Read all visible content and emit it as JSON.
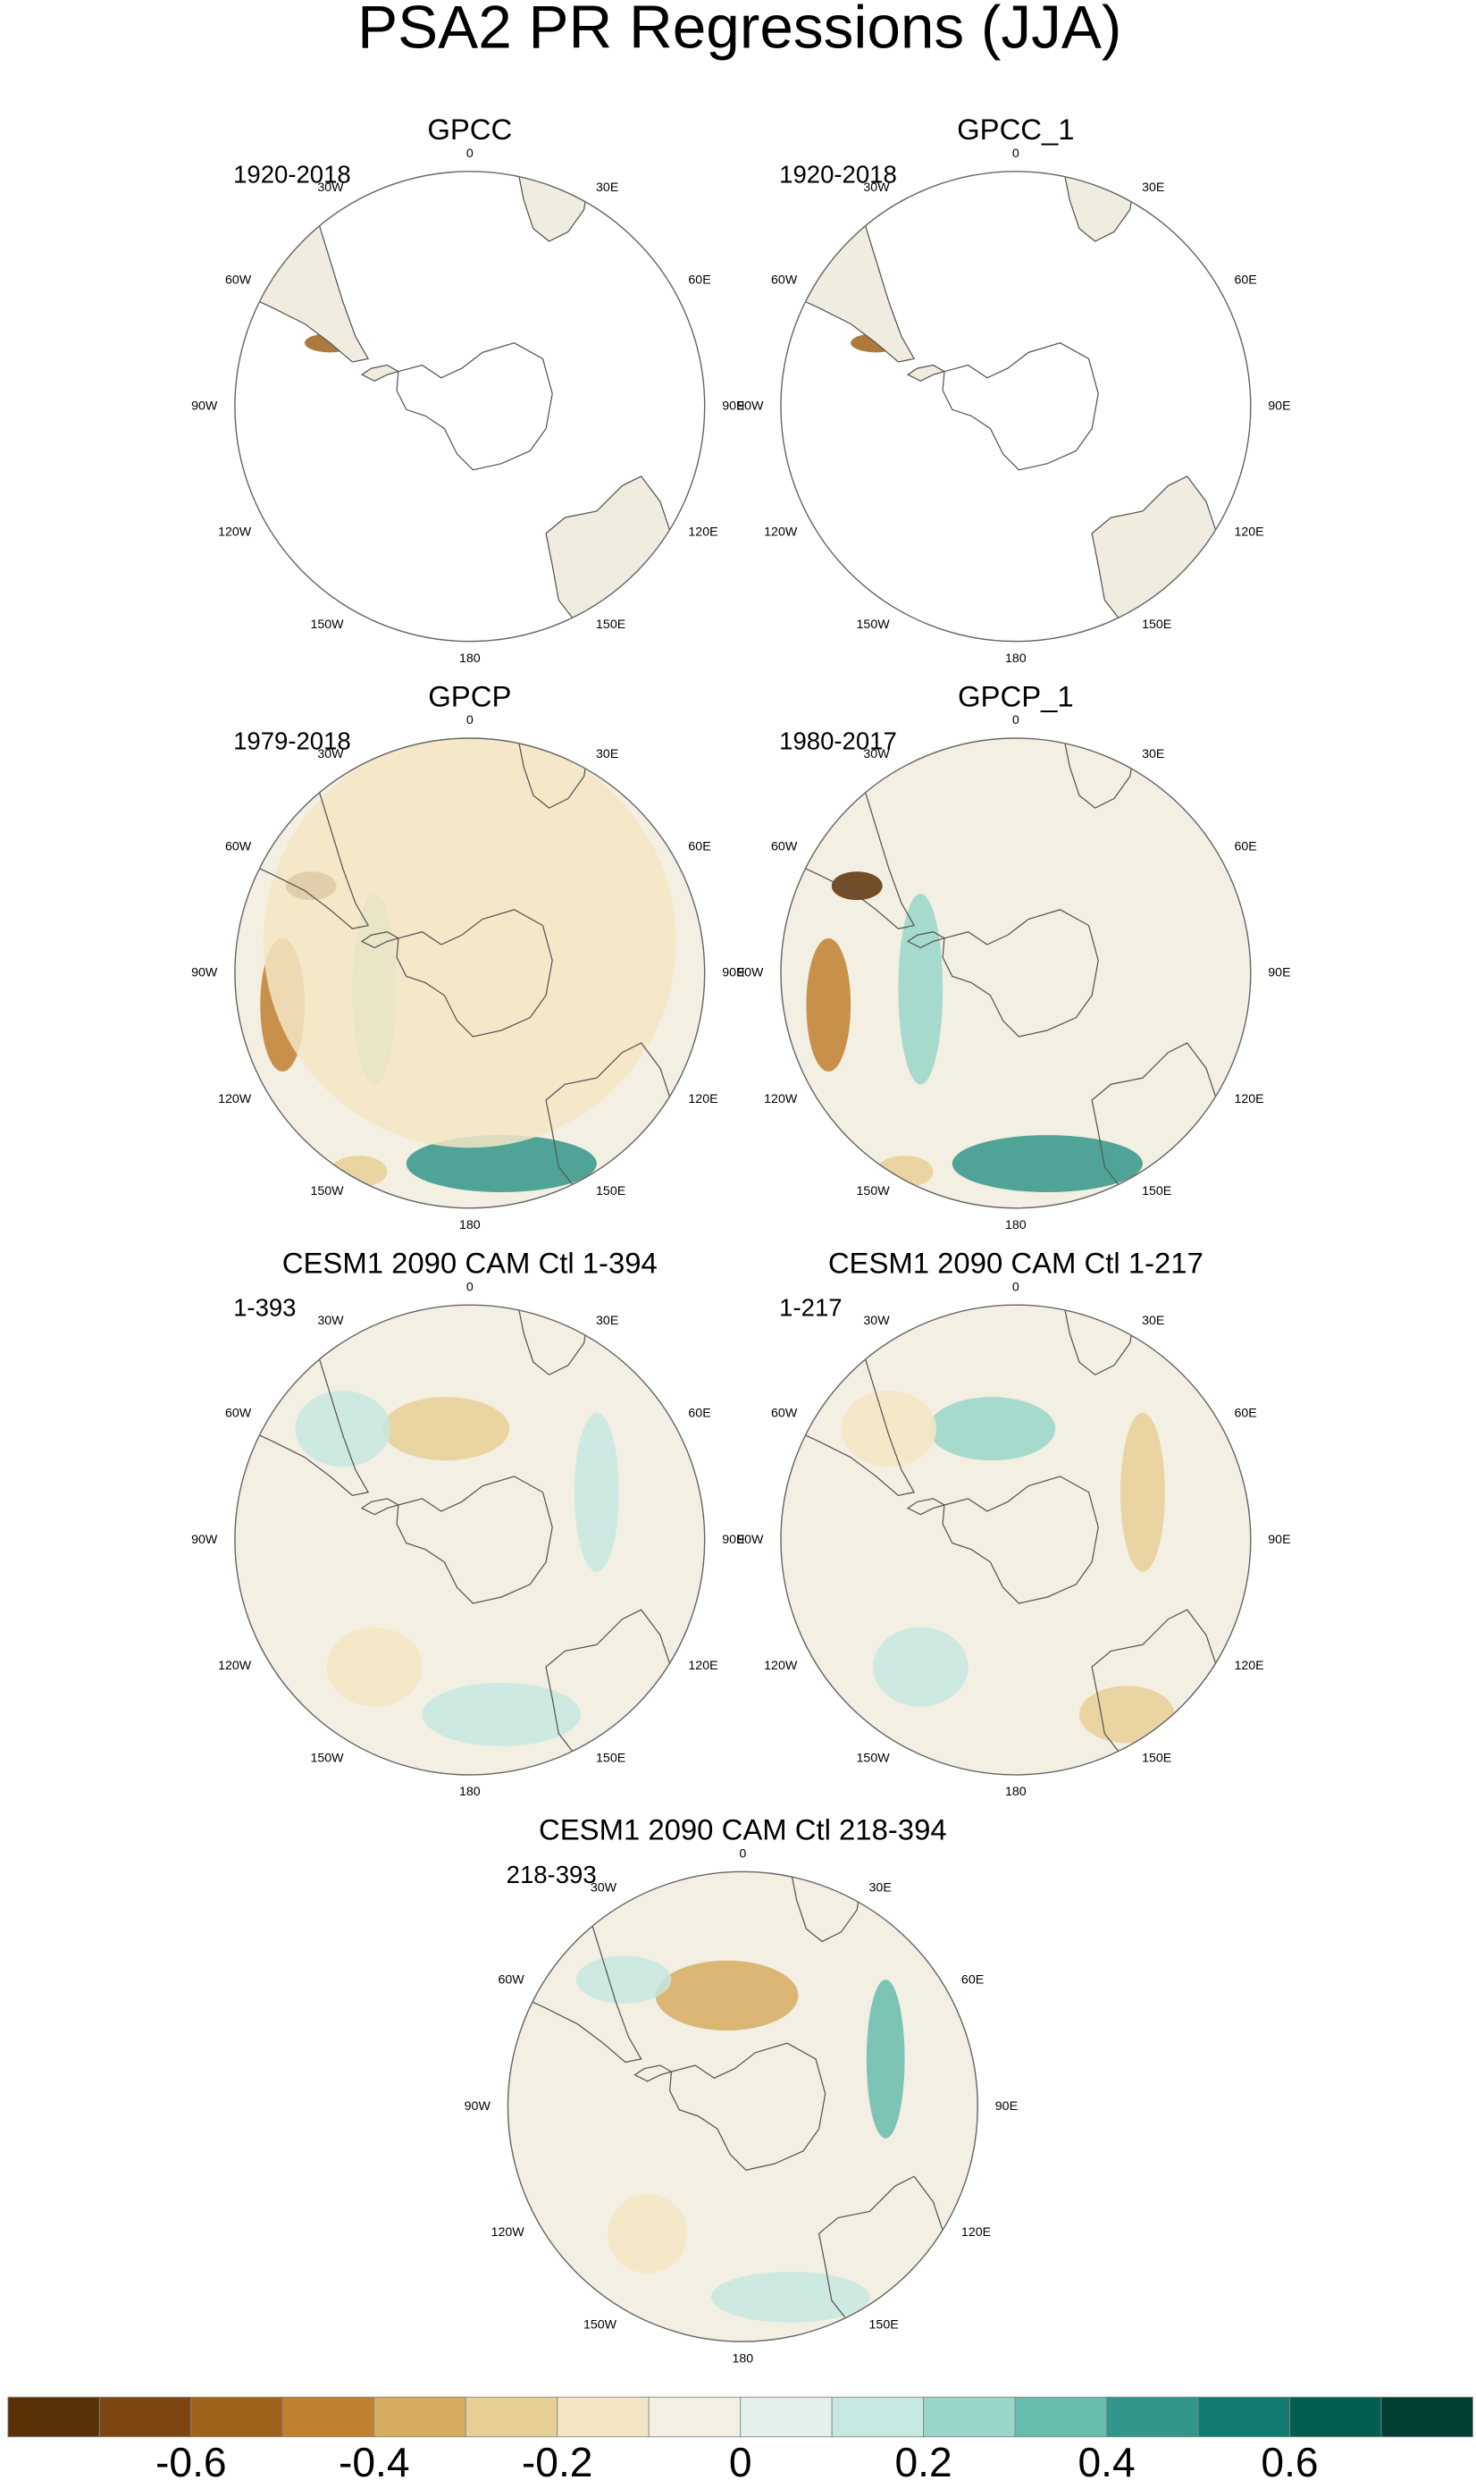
{
  "title": "PSA2 PR Regressions (JJA)",
  "panels": [
    {
      "title": "GPCC",
      "period": "1920-2018"
    },
    {
      "title": "GPCC_1",
      "period": "1920-2018"
    },
    {
      "title": "GPCP",
      "period": "1979-2018"
    },
    {
      "title": "GPCP_1",
      "period": "1980-2017"
    },
    {
      "title": "CESM1 2090 CAM Ctl 1-394",
      "period": "1-393"
    },
    {
      "title": "CESM1 2090 CAM Ctl 1-217",
      "period": "1-217"
    },
    {
      "title": "CESM1 2090 CAM Ctl 218-394",
      "period": "218-393"
    }
  ],
  "lon_labels": [
    "0",
    "30E",
    "60E",
    "90E",
    "120E",
    "150E",
    "180",
    "150W",
    "120W",
    "90W",
    "60W",
    "30W"
  ],
  "colorbar": {
    "lim": [
      -0.8,
      0.8
    ],
    "colors": [
      "#5a3006",
      "#7d4510",
      "#a0621a",
      "#c08030",
      "#d6ac62",
      "#e8cf96",
      "#f4e6c4",
      "#f3efe3",
      "#e4f0ee",
      "#c6e8e1",
      "#98d6c9",
      "#66bcad",
      "#32978a",
      "#127a6e",
      "#035d51",
      "#003d32"
    ],
    "ticks": [
      -0.6,
      -0.4,
      -0.2,
      0,
      0.2,
      0.4,
      0.6
    ]
  }
}
